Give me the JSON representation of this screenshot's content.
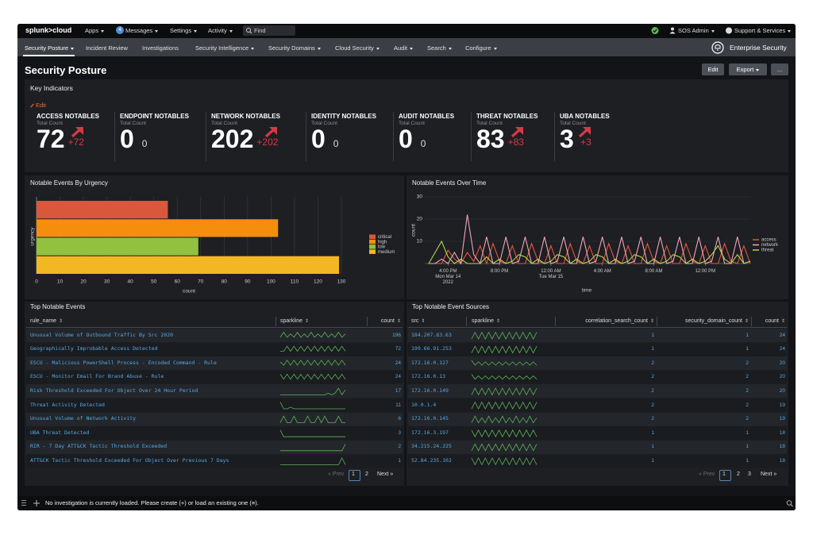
{
  "topbar": {
    "logo": "splunk>cloud",
    "menus": [
      "Apps",
      "Messages",
      "Settings",
      "Activity"
    ],
    "badge": 4,
    "find": "Find",
    "user": "SOS Admin",
    "support": "Support & Services"
  },
  "nav": {
    "items": [
      {
        "label": "Security Posture",
        "menu": true
      },
      {
        "label": "Incident Review",
        "menu": false
      },
      {
        "label": "Investigations",
        "menu": false
      },
      {
        "label": "Security Intelligence",
        "menu": true
      },
      {
        "label": "Security Domains",
        "menu": true
      },
      {
        "label": "Cloud Security",
        "menu": true
      },
      {
        "label": "Audit",
        "menu": true
      },
      {
        "label": "Search",
        "menu": true
      },
      {
        "label": "Configure",
        "menu": true
      }
    ],
    "app": "Enterprise Security"
  },
  "page": {
    "title": "Security Posture",
    "buttons": {
      "edit": "Edit",
      "export": "Export",
      "more": "..."
    }
  },
  "key_indicators": {
    "title": "Key Indicators",
    "edit": "Edit",
    "items": [
      {
        "name": "ACCESS NOTABLES",
        "sub": "Total Count",
        "value": 72,
        "delta": "+72",
        "trend": "up"
      },
      {
        "name": "ENDPOINT NOTABLES",
        "sub": "Total Count",
        "value": 0,
        "delta": 0
      },
      {
        "name": "NETWORK NOTABLES",
        "sub": "Total Count",
        "value": 202,
        "delta": "+202",
        "trend": "up"
      },
      {
        "name": "IDENTITY NOTABLES",
        "sub": "Total Count",
        "value": 0,
        "delta": 0
      },
      {
        "name": "AUDIT NOTABLES",
        "sub": "Total Count",
        "value": 0,
        "delta": 0
      },
      {
        "name": "THREAT NOTABLES",
        "sub": "Total Count",
        "value": 83,
        "delta": "+83",
        "trend": "up"
      },
      {
        "name": "UBA NOTABLES",
        "sub": "Total Count",
        "value": 3,
        "delta": "+3",
        "trend": "up"
      }
    ]
  },
  "chart_data": [
    {
      "type": "bar",
      "orientation": "horizontal",
      "title": "Notable Events By Urgency",
      "categories": [
        "critical",
        "high",
        "low",
        "medium"
      ],
      "values": [
        56,
        103,
        69,
        129
      ],
      "colors": [
        "#d9583b",
        "#f58e0c",
        "#92c13f",
        "#f2b722"
      ],
      "xlabel": "count",
      "ylabel": "urgency",
      "xlim": [
        0,
        130
      ],
      "xticks": [
        0,
        10,
        20,
        30,
        40,
        50,
        60,
        70,
        80,
        90,
        100,
        110,
        120,
        130
      ],
      "grid": true,
      "legend": "right"
    },
    {
      "type": "line",
      "title": "Notable Events Over Time",
      "categories": [
        null,
        null,
        null,
        "4:00 PM\nMon Mar 14\n2022",
        null,
        null,
        null,
        null,
        null,
        null,
        null,
        "8:00 PM",
        null,
        null,
        null,
        null,
        null,
        null,
        null,
        "12:00 AM\nTue Mar 15",
        null,
        null,
        null,
        null,
        null,
        null,
        null,
        "4:00 AM",
        null,
        null,
        null,
        null,
        null,
        null,
        null,
        "8:00 AM",
        null,
        null,
        null,
        null,
        null,
        null,
        null,
        "12:00 PM",
        null,
        null,
        null,
        null,
        null,
        null,
        null
      ],
      "series": [
        {
          "name": "access",
          "color": "#e8553c",
          "values": [
            0,
            0,
            0,
            6,
            2,
            0,
            5,
            1,
            8,
            0,
            9,
            1,
            0,
            8,
            0,
            0,
            9,
            1,
            0,
            8,
            0,
            0,
            9,
            1,
            0,
            8,
            0,
            0,
            9,
            1,
            0,
            8,
            0,
            0,
            9,
            1,
            0,
            8,
            0,
            0,
            9,
            1,
            0,
            8,
            0,
            0,
            9,
            1,
            0,
            8,
            0
          ]
        },
        {
          "name": "network",
          "color": "#f2a5b8",
          "values": [
            0,
            0,
            2,
            0,
            5,
            0,
            22,
            4,
            0,
            12,
            0,
            0,
            12,
            0,
            1,
            12,
            0,
            0,
            12,
            0,
            1,
            12,
            0,
            0,
            12,
            0,
            1,
            12,
            0,
            0,
            12,
            0,
            1,
            12,
            0,
            0,
            12,
            0,
            1,
            12,
            0,
            0,
            12,
            0,
            1,
            12,
            0,
            0,
            12,
            0,
            1
          ]
        },
        {
          "name": "threat",
          "color": "#b9d44a",
          "values": [
            0,
            5,
            10,
            3,
            0,
            2,
            0,
            0,
            0,
            3,
            0,
            2,
            0,
            1,
            4,
            3,
            0,
            2,
            0,
            1,
            4,
            3,
            0,
            2,
            0,
            1,
            4,
            3,
            0,
            2,
            0,
            1,
            4,
            3,
            0,
            2,
            0,
            1,
            4,
            3,
            0,
            2,
            0,
            1,
            4,
            8,
            2,
            0,
            4,
            0,
            1
          ]
        }
      ],
      "xlabel": "time",
      "ylabel": "count",
      "ylim": [
        0,
        30
      ],
      "yticks": [
        10,
        20,
        30
      ],
      "grid": true,
      "legend": "right"
    }
  ],
  "tables": [
    {
      "title": "Top Notable Events",
      "columns": [
        "rule_name",
        "sparkline",
        "count"
      ],
      "rows": [
        [
          "Unusual Volume of Outbound Traffic By Src 2020",
          [
            1,
            4,
            1,
            3,
            1,
            4,
            1,
            3,
            1,
            4,
            1,
            3,
            1,
            4,
            1,
            3,
            1,
            4,
            1,
            3
          ],
          196
        ],
        [
          "Geographically Improbable Access Detected",
          [
            1,
            1,
            4,
            1,
            4,
            1,
            4,
            1,
            4,
            1,
            4,
            1,
            4,
            1,
            4,
            1,
            4,
            1,
            4,
            1
          ],
          72
        ],
        [
          "ESCU - Malicious PowerShell Process - Encoded Command - Rule",
          [
            3,
            1,
            4,
            1,
            4,
            1,
            4,
            1,
            4,
            1,
            4,
            1,
            4,
            1,
            4,
            1,
            4,
            1,
            4,
            1
          ],
          24
        ],
        [
          "ESCU - Monitor Email For Brand Abuse - Rule",
          [
            4,
            1,
            4,
            1,
            4,
            1,
            4,
            1,
            4,
            1,
            4,
            1,
            4,
            1,
            4,
            1,
            4,
            1,
            4,
            1
          ],
          24
        ],
        [
          "Risk Threshold Exceeded For Object Over 24 Hour Period",
          [
            0,
            0,
            0,
            0,
            0,
            0,
            0,
            0,
            0,
            0,
            0,
            0,
            0,
            0,
            1,
            0,
            1,
            4,
            0,
            3
          ],
          17
        ],
        [
          "Threat Activity Detected",
          [
            4,
            0,
            0,
            1,
            0,
            0,
            0,
            0,
            0,
            0,
            0,
            0,
            0,
            0,
            0,
            0,
            0,
            0,
            0,
            0
          ],
          11
        ],
        [
          "Unusual Volume of Network Activity",
          [
            0,
            4,
            0,
            0,
            4,
            0,
            0,
            0,
            4,
            0,
            0,
            4,
            0,
            4,
            0,
            0,
            0,
            4,
            0,
            0
          ],
          6
        ],
        [
          "UBA Threat Detected",
          [
            4,
            0,
            0,
            0,
            0,
            0,
            0,
            0,
            0,
            0,
            0,
            0,
            0,
            0,
            0,
            0,
            0,
            0,
            0,
            0
          ],
          3
        ],
        [
          "RIR - 7 Day ATT&CK Tactic Threshold Exceeded",
          [
            0,
            0,
            0,
            0,
            0,
            0,
            0,
            0,
            0,
            0,
            0,
            0,
            0,
            0,
            0,
            0,
            0,
            0,
            0,
            4
          ],
          2
        ],
        [
          "ATT&CK Tactic Threshold Exceeded For Object Over Previous 7 Days",
          [
            0,
            0,
            0,
            0,
            0,
            0,
            0,
            0,
            0,
            0,
            0,
            0,
            0,
            0,
            0,
            0,
            0,
            0,
            4,
            0
          ],
          1
        ]
      ],
      "pagination": [
        "« Prev",
        "1",
        "2",
        "Next »"
      ]
    },
    {
      "title": "Top Notable Event Sources",
      "columns": [
        "src",
        "sparkline",
        "correlation_search_count",
        "security_domain_count",
        "count"
      ],
      "rows": [
        [
          "184.207.83.63",
          [
            0,
            4,
            0,
            4,
            0,
            4,
            0,
            4,
            0,
            4,
            0,
            4,
            0,
            4,
            0,
            4,
            0,
            4,
            0,
            4
          ],
          1,
          1,
          24
        ],
        [
          "199.66.91.253",
          [
            0,
            4,
            0,
            4,
            0,
            4,
            0,
            4,
            0,
            4,
            0,
            4,
            0,
            4,
            0,
            4,
            0,
            4,
            0,
            4
          ],
          1,
          1,
          24
        ],
        [
          "172.16.0.127",
          [
            4,
            1,
            3,
            1,
            3,
            1,
            3,
            1,
            3,
            1,
            3,
            1,
            3,
            1,
            3,
            1,
            3,
            1,
            3,
            1
          ],
          2,
          2,
          20
        ],
        [
          "172.16.0.13",
          [
            4,
            1,
            3,
            1,
            3,
            1,
            3,
            1,
            3,
            1,
            3,
            1,
            3,
            1,
            3,
            1,
            3,
            1,
            3,
            1
          ],
          2,
          2,
          20
        ],
        [
          "172.16.0.149",
          [
            0,
            4,
            0,
            4,
            0,
            4,
            0,
            4,
            0,
            4,
            0,
            4,
            0,
            4,
            0,
            4,
            0,
            4,
            0,
            4
          ],
          2,
          2,
          20
        ],
        [
          "10.0.1.4",
          [
            0,
            4,
            0,
            4,
            0,
            4,
            0,
            4,
            0,
            4,
            0,
            4,
            0,
            4,
            0,
            4,
            0,
            4,
            0,
            4
          ],
          2,
          2,
          19
        ],
        [
          "172.16.0.145",
          [
            0,
            4,
            0,
            3,
            0,
            4,
            0,
            3,
            0,
            4,
            0,
            3,
            0,
            4,
            0,
            3,
            0,
            4,
            0,
            3
          ],
          2,
          2,
          19
        ],
        [
          "172.16.3.197",
          [
            4,
            0,
            4,
            0,
            4,
            0,
            4,
            0,
            4,
            0,
            4,
            0,
            4,
            0,
            4,
            0,
            4,
            0,
            4,
            0
          ],
          1,
          1,
          18
        ],
        [
          "34.215.24.225",
          [
            0,
            4,
            0,
            4,
            0,
            4,
            0,
            4,
            0,
            4,
            0,
            4,
            0,
            4,
            0,
            4,
            0,
            4,
            0,
            4
          ],
          1,
          1,
          18
        ],
        [
          "52.84.235.102",
          [
            4,
            0,
            4,
            0,
            4,
            0,
            4,
            0,
            4,
            0,
            4,
            0,
            4,
            0,
            4,
            0,
            4,
            0,
            4,
            0
          ],
          1,
          1,
          18
        ]
      ],
      "pagination": [
        "« Prev",
        "1",
        "2",
        "3",
        "Next »"
      ]
    }
  ],
  "footer": "No investigation is currently loaded. Please create (+) or load an existing one (≡)."
}
